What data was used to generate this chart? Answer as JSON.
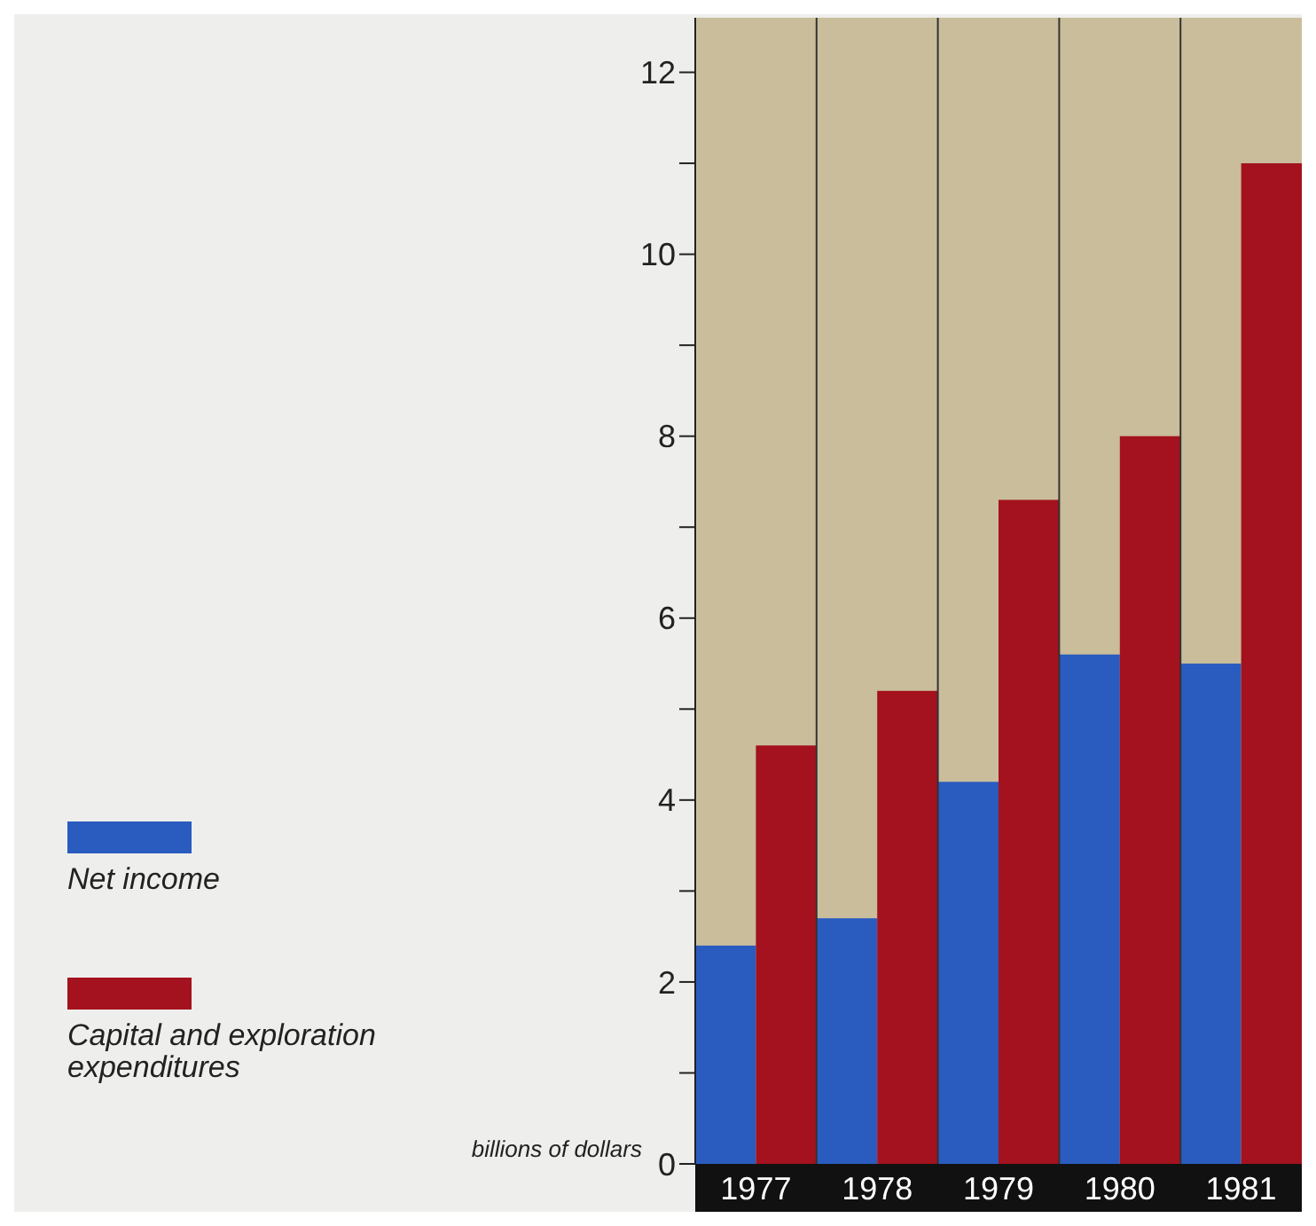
{
  "chart_data": {
    "type": "bar",
    "categories": [
      "1977",
      "1978",
      "1979",
      "1980",
      "1981"
    ],
    "series": [
      {
        "name": "Net income",
        "color": "#2a5bbf",
        "values": [
          2.4,
          2.7,
          4.2,
          5.6,
          5.5
        ]
      },
      {
        "name": "Capital and exploration expenditures",
        "color": "#a3121e",
        "values": [
          4.6,
          5.2,
          7.3,
          8.0,
          11.0
        ]
      }
    ],
    "ylabel": "billions of dollars",
    "ylim": [
      0,
      12.6
    ],
    "yticks": [
      0,
      {
        "value": 1,
        "label": null
      },
      2,
      {
        "value": 3,
        "label": null
      },
      4,
      {
        "value": 5,
        "label": null
      },
      6,
      {
        "value": 7,
        "label": null
      },
      8,
      {
        "value": 9,
        "label": null
      },
      10,
      {
        "value": 11,
        "label": null
      },
      12
    ],
    "legend": "bottom left",
    "grid": false
  }
}
